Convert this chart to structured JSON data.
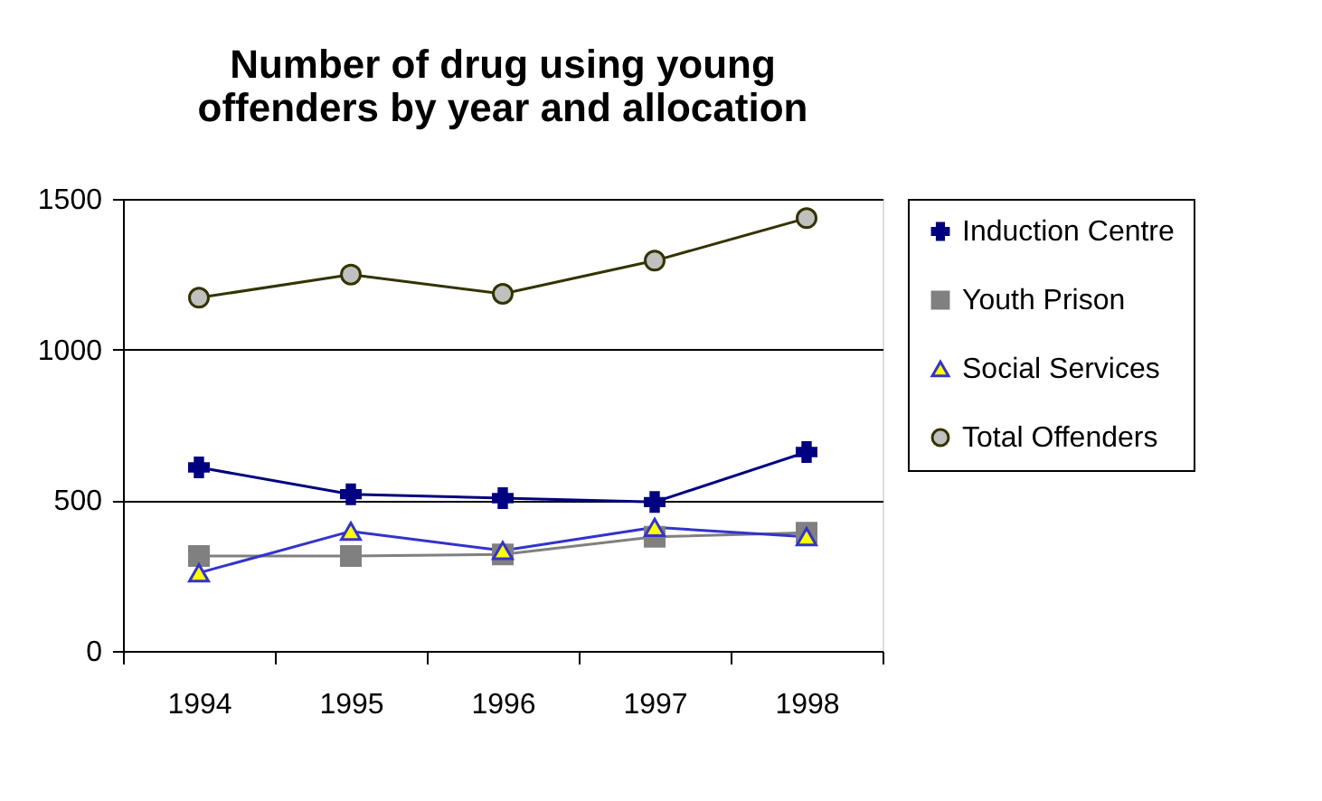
{
  "chart_data": {
    "type": "line",
    "title": "Number of drug using young offenders by year and allocation",
    "categories": [
      "1994",
      "1995",
      "1996",
      "1997",
      "1998"
    ],
    "series": [
      {
        "name": "Induction Centre",
        "color": "#000080",
        "marker": "cross",
        "values": [
          609,
          520,
          507,
          494,
          660
        ]
      },
      {
        "name": "Youth Prison",
        "color": "#808080",
        "marker": "square",
        "values": [
          315,
          315,
          320,
          379,
          392
        ]
      },
      {
        "name": "Social Services",
        "color": "#3333cc",
        "marker": "triangle",
        "values": [
          259,
          397,
          333,
          410,
          379
        ]
      },
      {
        "name": "Total Offenders",
        "color": "#333300",
        "marker": "circle",
        "values": [
          1172,
          1249,
          1185,
          1295,
          1436
        ]
      }
    ],
    "ylim": [
      0,
      1500
    ],
    "yticks": [
      0,
      500,
      1000,
      1500
    ],
    "grid": "y",
    "legend": "right",
    "line_style": "solid"
  }
}
